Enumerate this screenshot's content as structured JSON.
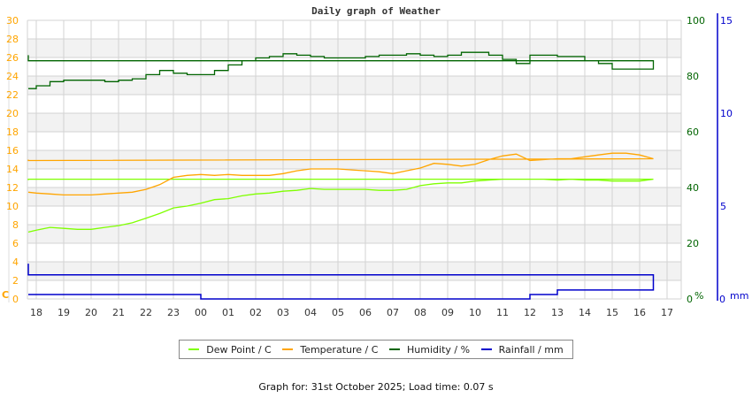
{
  "title": "Daily graph of Weather",
  "footer": "Graph for: 31st October 2025; Load time: 0.07 s",
  "colors": {
    "dew_point": "#7fff00",
    "temperature": "#ffa500",
    "humidity": "#006400",
    "rainfall": "#0000cc",
    "left_axis": "#ffa500",
    "humidity_axis": "#006400",
    "rain_axis": "#0000cc",
    "grid": "#d3d3d3",
    "band": "#f2f2f2"
  },
  "legend": [
    {
      "label": "Dew Point / C",
      "color": "#7fff00"
    },
    {
      "label": "Temperature / C",
      "color": "#ffa500"
    },
    {
      "label": "Humidity / %",
      "color": "#006400"
    },
    {
      "label": "Rainfall / mm",
      "color": "#0000cc"
    }
  ],
  "axes": {
    "left_unit": "C",
    "humidity_unit": "%",
    "rain_unit": "mm"
  },
  "chart_data": {
    "type": "line",
    "title": "Daily graph of Weather",
    "xlabel": "",
    "x_ticks": [
      "18",
      "19",
      "20",
      "21",
      "22",
      "23",
      "00",
      "01",
      "02",
      "03",
      "04",
      "05",
      "06",
      "07",
      "08",
      "09",
      "10",
      "11",
      "12",
      "13",
      "14",
      "15",
      "16",
      "17"
    ],
    "y_axes": [
      {
        "name": "Temperature / Dew Point",
        "unit": "C",
        "ticks": [
          0,
          2,
          4,
          6,
          8,
          10,
          12,
          14,
          16,
          18,
          20,
          22,
          24,
          26,
          28,
          30
        ],
        "ylim": [
          0,
          30
        ]
      },
      {
        "name": "Humidity",
        "unit": "%",
        "ticks": [
          0,
          20,
          40,
          60,
          80,
          100
        ],
        "ylim": [
          0,
          100
        ]
      },
      {
        "name": "Rainfall",
        "unit": "mm",
        "ticks": [
          0,
          5,
          10,
          15
        ],
        "ylim": [
          0,
          15
        ]
      }
    ],
    "grid": true,
    "legend_position": "bottom",
    "x_hours": [
      17.7,
      18,
      18.5,
      19,
      19.5,
      20,
      20.5,
      21,
      21.5,
      22,
      22.5,
      23,
      23.5,
      0,
      0.5,
      1,
      1.5,
      2,
      2.5,
      3,
      3.5,
      4,
      4.5,
      5,
      5.5,
      6,
      6.5,
      7,
      7.5,
      8,
      8.5,
      9,
      9.5,
      10,
      10.5,
      11,
      11.5,
      12,
      12.5,
      13,
      13.5,
      14,
      14.5,
      15,
      15.5,
      16,
      16.5,
      17,
      17.6
    ],
    "series": [
      {
        "name": "Dew Point / C",
        "axis": 0,
        "values": [
          7.2,
          7.4,
          7.7,
          7.6,
          7.5,
          7.5,
          7.7,
          7.9,
          8.2,
          8.7,
          9.2,
          9.8,
          10.0,
          10.3,
          10.7,
          10.8,
          11.1,
          11.3,
          11.4,
          11.6,
          11.7,
          11.9,
          11.8,
          11.8,
          11.8,
          11.8,
          11.7,
          11.7,
          11.8,
          12.2,
          12.4,
          12.5,
          12.5,
          12.7,
          12.8,
          12.9,
          12.9,
          12.9,
          12.9,
          12.8,
          12.9,
          12.8,
          12.8,
          12.7,
          12.7,
          12.7,
          12.9,
          12.9,
          12.8
        ]
      },
      {
        "name": "Temperature / C",
        "axis": 0,
        "values": [
          11.5,
          11.4,
          11.3,
          11.2,
          11.2,
          11.2,
          11.3,
          11.4,
          11.5,
          11.8,
          12.3,
          13.1,
          13.3,
          13.4,
          13.3,
          13.4,
          13.3,
          13.3,
          13.3,
          13.5,
          13.8,
          14.0,
          14.0,
          14.0,
          13.9,
          13.8,
          13.7,
          13.5,
          13.8,
          14.1,
          14.6,
          14.5,
          14.3,
          14.5,
          15.0,
          15.4,
          15.6,
          14.9,
          15.0,
          15.1,
          15.1,
          15.3,
          15.5,
          15.7,
          15.7,
          15.5,
          15.1,
          14.9,
          15.0
        ]
      },
      {
        "name": "Humidity / %",
        "axis": 1,
        "values": [
          75.5,
          76.5,
          78.0,
          78.5,
          78.5,
          78.5,
          78.0,
          78.5,
          79.0,
          80.5,
          82.0,
          81.0,
          80.5,
          80.5,
          82.0,
          84.0,
          85.5,
          86.5,
          87.0,
          88.0,
          87.5,
          87.0,
          86.5,
          86.5,
          86.5,
          87.0,
          87.5,
          87.5,
          88.0,
          87.5,
          87.0,
          87.5,
          88.5,
          88.5,
          87.5,
          86.0,
          84.5,
          87.5,
          87.5,
          87.0,
          87.0,
          85.5,
          84.5,
          82.5,
          82.5,
          82.5,
          85.5,
          87.5,
          87.0
        ]
      },
      {
        "name": "Rainfall / mm",
        "axis": 2,
        "values": [
          0.24,
          0.24,
          0.24,
          0.24,
          0.24,
          0.24,
          0.24,
          0.24,
          0.24,
          0.24,
          0.24,
          0.24,
          0.24,
          0.0,
          0.0,
          0.0,
          0.0,
          0.0,
          0.0,
          0.0,
          0.0,
          0.0,
          0.0,
          0.0,
          0.0,
          0.0,
          0.0,
          0.0,
          0.0,
          0.0,
          0.0,
          0.0,
          0.0,
          0.0,
          0.0,
          0.0,
          0.0,
          0.24,
          0.24,
          0.48,
          0.48,
          0.48,
          0.48,
          0.48,
          0.48,
          0.48,
          1.3,
          1.62,
          1.9
        ]
      }
    ]
  }
}
